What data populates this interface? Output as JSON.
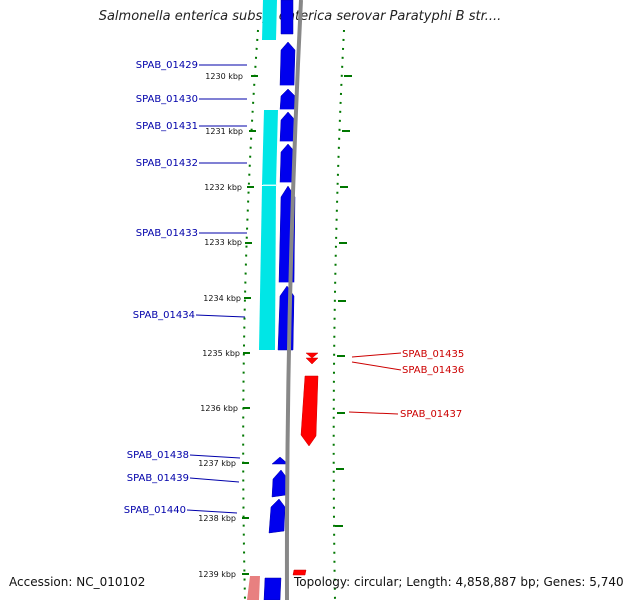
{
  "title": "Salmonella enterica subsp. enterica serovar Paratyphi B str....",
  "footer": {
    "accession": "Accession: NC_010102",
    "topology": "Topology: circular; Length: 4,858,887 bp; Genes: 5,740"
  },
  "colors": {
    "forward_gene": "#0000ee",
    "reverse_gene": "#ff0000",
    "cyan_feature": "#00e6e6",
    "tick_marks": "#007700",
    "backbone": "#888888",
    "forward_label": "#0000aa",
    "reverse_label": "#cc0000"
  },
  "ticks": [
    "1230 kbp",
    "1231 kbp",
    "1232 kbp",
    "1233 kbp",
    "1234 kbp",
    "1235 kbp",
    "1236 kbp",
    "1237 kbp",
    "1238 kbp",
    "1239 kbp"
  ],
  "forward_genes": [
    "SPAB_01429",
    "SPAB_01430",
    "SPAB_01431",
    "SPAB_01432",
    "SPAB_01433",
    "SPAB_01434",
    "SPAB_01438",
    "SPAB_01439",
    "SPAB_01440"
  ],
  "reverse_genes": [
    "SPAB_01435",
    "SPAB_01436",
    "SPAB_01437"
  ]
}
